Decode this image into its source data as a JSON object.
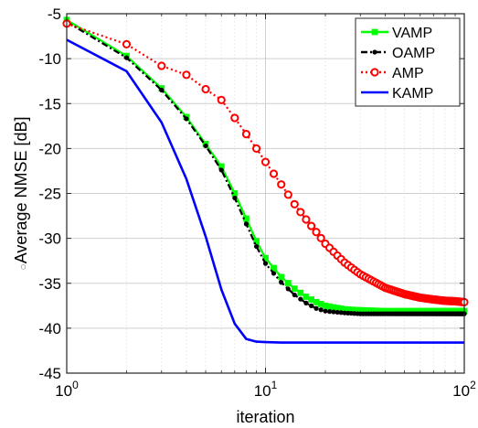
{
  "chart_data": {
    "type": "line",
    "xscale": "log",
    "xlim": [
      1,
      100
    ],
    "ylim": [
      -45,
      -5
    ],
    "xlabel": "iteration",
    "ylabel": "Average NMSE [dB]",
    "ylabel_prefix_glyph": "○",
    "xticks": [
      {
        "value": 1,
        "base": "10",
        "exp": "0"
      },
      {
        "value": 10,
        "base": "10",
        "exp": "1"
      },
      {
        "value": 100,
        "base": "10",
        "exp": "2"
      }
    ],
    "yticks": [
      -5,
      -10,
      -15,
      -20,
      -25,
      -30,
      -35,
      -40,
      -45
    ],
    "grid": true,
    "legend_position": "top-right",
    "series": [
      {
        "name": "VAMP",
        "color": "#00ff00",
        "dash": "solid",
        "marker": "square",
        "x": [
          1,
          2,
          3,
          4,
          5,
          6,
          7,
          8,
          9,
          10,
          12,
          14,
          16,
          18,
          20,
          25,
          30,
          40,
          50,
          60,
          70,
          80,
          90,
          100
        ],
        "y": [
          -5.7,
          -9.7,
          -13.3,
          -16.5,
          -19.5,
          -22.0,
          -25.0,
          -27.8,
          -30.3,
          -32.2,
          -34.3,
          -35.6,
          -36.5,
          -37.1,
          -37.5,
          -37.9,
          -38.0,
          -38.1,
          -38.1,
          -38.1,
          -38.1,
          -38.1,
          -38.1,
          -38.1
        ]
      },
      {
        "name": "OAMP",
        "color": "#000000",
        "dash": "dashdot",
        "marker": "dot",
        "x": [
          1,
          2,
          3,
          4,
          5,
          6,
          7,
          8,
          9,
          10,
          12,
          14,
          16,
          18,
          20,
          25,
          30,
          40,
          50,
          60,
          70,
          80,
          90,
          100
        ],
        "y": [
          -5.9,
          -9.9,
          -13.5,
          -16.7,
          -19.7,
          -22.4,
          -25.5,
          -28.4,
          -30.9,
          -32.8,
          -34.9,
          -36.3,
          -37.2,
          -37.8,
          -38.1,
          -38.3,
          -38.4,
          -38.4,
          -38.4,
          -38.4,
          -38.4,
          -38.4,
          -38.4,
          -38.4
        ]
      },
      {
        "name": "AMP",
        "color": "#ff0000",
        "dash": "dotted",
        "marker": "circle",
        "x": [
          1,
          2,
          3,
          4,
          5,
          6,
          7,
          8,
          9,
          10,
          12,
          14,
          16,
          18,
          20,
          25,
          30,
          40,
          50,
          60,
          70,
          80,
          90,
          100
        ],
        "y": [
          -6.1,
          -8.4,
          -10.8,
          -11.8,
          -13.4,
          -14.6,
          -16.6,
          -18.4,
          -20.0,
          -21.5,
          -24.0,
          -26.2,
          -27.9,
          -29.3,
          -30.6,
          -32.7,
          -34.0,
          -35.5,
          -36.2,
          -36.6,
          -36.8,
          -36.95,
          -37.0,
          -37.1
        ]
      },
      {
        "name": "KAMP",
        "color": "#0000ff",
        "dash": "solid",
        "marker": "none",
        "x": [
          1,
          2,
          3,
          4,
          5,
          6,
          7,
          8,
          9,
          10,
          12,
          15,
          20,
          30,
          50,
          100
        ],
        "y": [
          -7.9,
          -11.4,
          -17.1,
          -23.4,
          -29.8,
          -35.7,
          -39.5,
          -41.2,
          -41.5,
          -41.55,
          -41.6,
          -41.6,
          -41.6,
          -41.6,
          -41.6,
          -41.6
        ]
      }
    ]
  }
}
